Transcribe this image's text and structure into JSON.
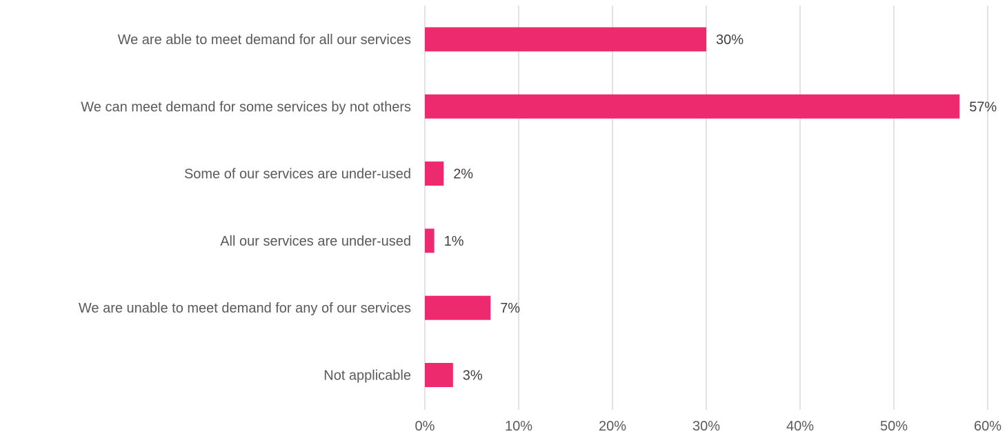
{
  "chart_data": {
    "type": "bar",
    "orientation": "horizontal",
    "categories": [
      "We are able to meet demand for all our services",
      "We can meet demand for some services by not others",
      "Some of our services are under-used",
      "All our services are under-used",
      "We are unable to meet demand for any of our services",
      "Not applicable"
    ],
    "values": [
      30,
      57,
      2,
      1,
      7,
      3
    ],
    "data_labels": [
      "30%",
      "57%",
      "2%",
      "1%",
      "7%",
      "3%"
    ],
    "xlim": [
      0,
      60
    ],
    "x_ticks": [
      0,
      10,
      20,
      30,
      40,
      50,
      60
    ],
    "x_tick_labels": [
      "0%",
      "10%",
      "20%",
      "30%",
      "40%",
      "50%",
      "60%"
    ],
    "title": "",
    "xlabel": "",
    "ylabel": "",
    "grid": "vertical",
    "legend": "none",
    "colors": {
      "bar": "#ee2a6f",
      "grid": "#d9d9d9",
      "text": "#595959",
      "data_label": "#404040"
    }
  }
}
